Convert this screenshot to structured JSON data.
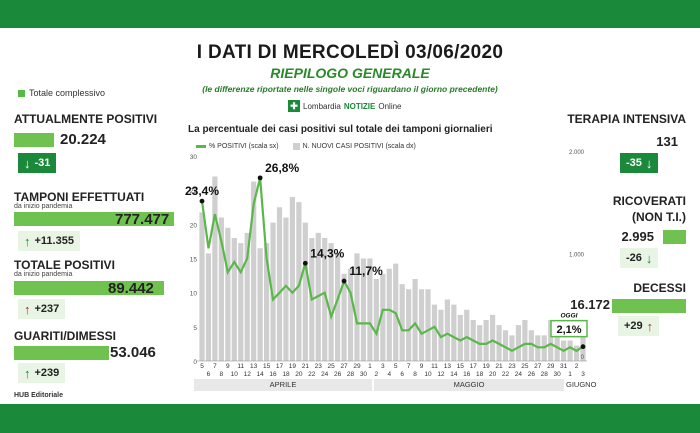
{
  "header": {
    "title": "I DATI DI MERCOLEDÌ 03/06/2020",
    "subtitle": "RIEPILOGO GENERALE",
    "note": "(le differenze riportate nelle singole voci riguardano il giorno precedente)",
    "logo_mark": "✚",
    "logo_region": "Lombardia",
    "logo_brand": "NOTIZIE",
    "logo_suffix": "Online"
  },
  "legend_total": "Totale complessivo",
  "footer": "HUB Editoriale",
  "left_stats": {
    "attualmente": {
      "label": "ATTUALMENTE POSITIVI",
      "value": "20.224",
      "delta": "-31"
    },
    "tamponi": {
      "label": "TAMPONI EFFETTUATI",
      "sub": "da inizio pandemia",
      "value": "777.477",
      "delta": "+11.355"
    },
    "totale": {
      "label": "TOTALE POSITIVI",
      "sub": "da inizio pandemia",
      "value": "89.442",
      "delta": "+237"
    },
    "guariti": {
      "label": "GUARITI/DIMESSI",
      "value": "53.046",
      "delta": "+239"
    }
  },
  "right_stats": {
    "terapia": {
      "label": "TERAPIA INTENSIVA",
      "value": "131",
      "delta": "-35"
    },
    "ricoverati": {
      "label1": "RICOVERATI",
      "label2": "(NON T.I.)",
      "value": "2.995",
      "delta": "-26"
    },
    "decessi": {
      "label": "DECESSI",
      "value": "16.172",
      "delta": "+29"
    }
  },
  "icons": {
    "up": "arrow-up-icon",
    "down": "arrow-down-icon"
  },
  "colors": {
    "green_dark": "#1a8a3a",
    "green_line": "#5ab84a",
    "bar_grey": "#cfcfcf",
    "red": "#b03020"
  },
  "chart_data": {
    "type": "line",
    "title": "La percentuale dei casi positivi sul totale dei tamponi giornalieri",
    "legend": [
      "% POSITIVI (scala sx)",
      "N. NUOVI CASI POSITIVI (scala dx)"
    ],
    "left_ticks": [
      "0",
      "5",
      "10",
      "15",
      "20",
      "25",
      "30"
    ],
    "right_ticks": [
      "0",
      "1.000",
      "2.000"
    ],
    "ylim_left": [
      0,
      30
    ],
    "ylim_right": [
      0,
      2000
    ],
    "x_labels": [
      "5",
      "6",
      "7",
      "8",
      "9",
      "10",
      "11",
      "12",
      "13",
      "14",
      "15",
      "16",
      "17",
      "18",
      "19",
      "20",
      "21",
      "22",
      "23",
      "24",
      "25",
      "26",
      "27",
      "28",
      "29",
      "30",
      "1",
      "2",
      "3",
      "4",
      "5",
      "6",
      "7",
      "8",
      "9",
      "10",
      "11",
      "12",
      "13",
      "14",
      "15",
      "16",
      "17",
      "18",
      "19",
      "20",
      "21",
      "22",
      "23",
      "24",
      "25",
      "26",
      "27",
      "28",
      "29",
      "30",
      "31",
      "1",
      "2",
      "3"
    ],
    "months": [
      "APRILE",
      "MAGGIO",
      "GIUGNO"
    ],
    "series": [
      {
        "name": "% POSITIVI (scala sx)",
        "axis": "left",
        "values": [
          23.4,
          16.5,
          21.5,
          17.5,
          13,
          14.5,
          13,
          15,
          23,
          26.8,
          15,
          9,
          10,
          11,
          10,
          11,
          14.3,
          9,
          9.5,
          10,
          6.5,
          9,
          11.7,
          10,
          5.5,
          5.5,
          5.5,
          4,
          7.5,
          7.5,
          7,
          4.5,
          4.5,
          5.5,
          4,
          4.5,
          5,
          3.5,
          4,
          3.5,
          3,
          3.5,
          3,
          2.5,
          2.5,
          3,
          2.5,
          2,
          1.5,
          2,
          2.5,
          2.5,
          2,
          2,
          2.5,
          2,
          1.5,
          2,
          1.5,
          2.1
        ]
      },
      {
        "name": "N. NUOVI CASI POSITIVI (scala dx)",
        "axis": "right",
        "values": [
          1450,
          1050,
          1800,
          1400,
          1300,
          1200,
          1150,
          1250,
          1750,
          1100,
          1150,
          1350,
          1500,
          1400,
          1600,
          1550,
          1350,
          1200,
          1250,
          1200,
          1150,
          1050,
          850,
          900,
          1050,
          1000,
          1000,
          800,
          850,
          900,
          950,
          750,
          700,
          800,
          700,
          700,
          550,
          500,
          600,
          550,
          450,
          500,
          400,
          350,
          400,
          450,
          350,
          300,
          250,
          350,
          400,
          300,
          250,
          250,
          400,
          350,
          200,
          200,
          150,
          240
        ]
      }
    ],
    "annotations": [
      {
        "label": "23,4%",
        "index": 0
      },
      {
        "label": "26,8%",
        "index": 9
      },
      {
        "label": "14,3%",
        "index": 16
      },
      {
        "label": "11,7%",
        "index": 22
      },
      {
        "label": "2,1%",
        "index": 59,
        "tag": "OGGI"
      }
    ]
  }
}
